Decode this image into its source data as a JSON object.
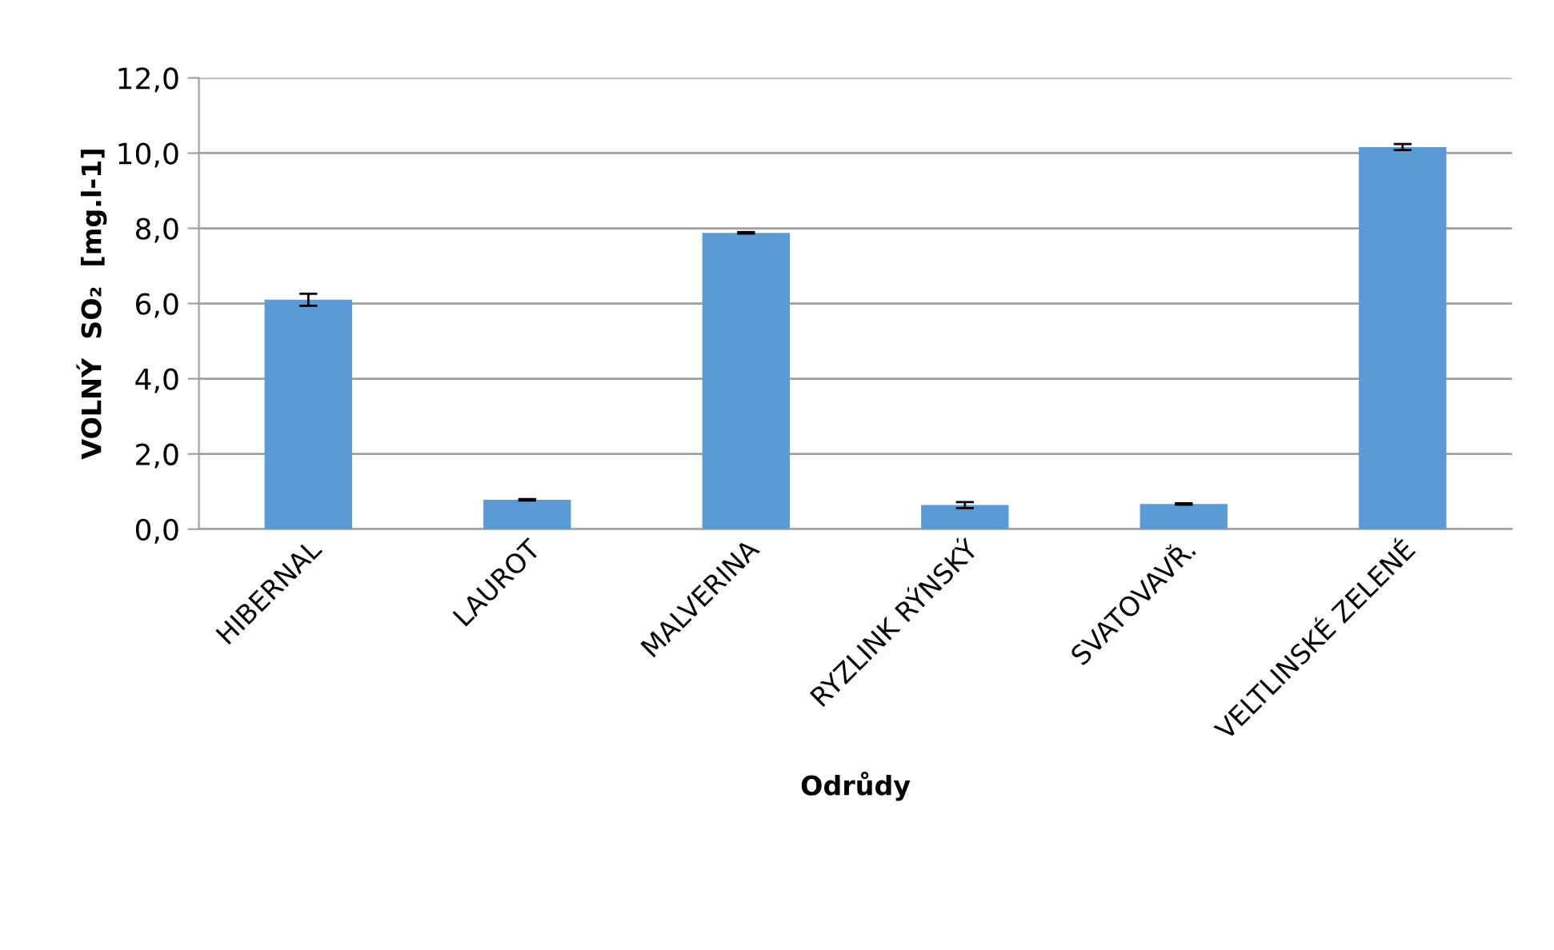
{
  "chart_data": {
    "type": "bar",
    "xlabel": "Odrůdy",
    "ylabel": "VOLNÝ  SO₂  [mg.l-1]",
    "categories": [
      "HIBERNAL",
      "LAUROT",
      "MALVERINA",
      "RYZLINK RÝNSKÝ",
      "SVATOVAVŘ.",
      "VELTLINSKÉ ZELENÉ"
    ],
    "values": [
      6.1,
      0.78,
      7.88,
      0.64,
      0.67,
      10.16
    ],
    "errors": [
      0.16,
      0.02,
      0.02,
      0.08,
      0.02,
      0.08
    ],
    "color": "#5b9bd5",
    "ylim": [
      0,
      12
    ],
    "yticks": [
      {
        "value": 0,
        "label": "0,0"
      },
      {
        "value": 2,
        "label": "2,0"
      },
      {
        "value": 4,
        "label": "4,0"
      },
      {
        "value": 6,
        "label": "6,0"
      },
      {
        "value": 8,
        "label": "8,0"
      },
      {
        "value": 10,
        "label": "10,0"
      },
      {
        "value": 12,
        "label": "12,0"
      }
    ],
    "grid": "y",
    "legend": false
  }
}
